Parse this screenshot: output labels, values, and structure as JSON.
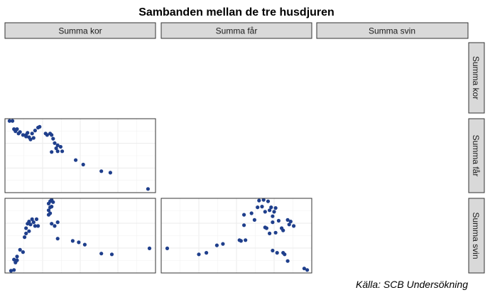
{
  "chart_data": {
    "type": "scatter",
    "title": "Sambanden mellan de tre husdjuren",
    "caption": "Källa: SCB Undersökning",
    "variables": [
      "Summa kor",
      "Summa får",
      "Summa svin"
    ],
    "grid": true,
    "series_color": "#1f3f8c",
    "panels": [
      {
        "x": "Summa kor",
        "y": "Summa får",
        "points": [
          [
            0.03,
            0.97
          ],
          [
            0.05,
            0.97
          ],
          [
            0.06,
            0.86
          ],
          [
            0.07,
            0.83
          ],
          [
            0.08,
            0.86
          ],
          [
            0.09,
            0.8
          ],
          [
            0.1,
            0.82
          ],
          [
            0.12,
            0.78
          ],
          [
            0.14,
            0.78
          ],
          [
            0.14,
            0.76
          ],
          [
            0.15,
            0.81
          ],
          [
            0.16,
            0.75
          ],
          [
            0.17,
            0.72
          ],
          [
            0.18,
            0.8
          ],
          [
            0.19,
            0.74
          ],
          [
            0.2,
            0.84
          ],
          [
            0.22,
            0.88
          ],
          [
            0.23,
            0.89
          ],
          [
            0.27,
            0.8
          ],
          [
            0.28,
            0.78
          ],
          [
            0.3,
            0.8
          ],
          [
            0.31,
            0.78
          ],
          [
            0.32,
            0.73
          ],
          [
            0.33,
            0.67
          ],
          [
            0.31,
            0.55
          ],
          [
            0.34,
            0.6
          ],
          [
            0.35,
            0.64
          ],
          [
            0.37,
            0.62
          ],
          [
            0.35,
            0.56
          ],
          [
            0.38,
            0.56
          ],
          [
            0.47,
            0.44
          ],
          [
            0.52,
            0.38
          ],
          [
            0.64,
            0.29
          ],
          [
            0.7,
            0.27
          ],
          [
            0.95,
            0.05
          ]
        ]
      },
      {
        "x": "Summa kor",
        "y": "Summa svin",
        "points": [
          [
            0.04,
            0.03
          ],
          [
            0.06,
            0.04
          ],
          [
            0.06,
            0.18
          ],
          [
            0.07,
            0.14
          ],
          [
            0.08,
            0.22
          ],
          [
            0.08,
            0.17
          ],
          [
            0.1,
            0.31
          ],
          [
            0.12,
            0.28
          ],
          [
            0.13,
            0.48
          ],
          [
            0.14,
            0.53
          ],
          [
            0.14,
            0.6
          ],
          [
            0.15,
            0.66
          ],
          [
            0.16,
            0.69
          ],
          [
            0.16,
            0.56
          ],
          [
            0.17,
            0.65
          ],
          [
            0.18,
            0.72
          ],
          [
            0.19,
            0.68
          ],
          [
            0.2,
            0.63
          ],
          [
            0.21,
            0.72
          ],
          [
            0.22,
            0.63
          ],
          [
            0.29,
            0.78
          ],
          [
            0.29,
            0.84
          ],
          [
            0.29,
            0.93
          ],
          [
            0.3,
            0.96
          ],
          [
            0.3,
            0.88
          ],
          [
            0.3,
            0.8
          ],
          [
            0.31,
            0.98
          ],
          [
            0.31,
            0.89
          ],
          [
            0.32,
            0.95
          ],
          [
            0.31,
            0.66
          ],
          [
            0.33,
            0.63
          ],
          [
            0.35,
            0.46
          ],
          [
            0.35,
            0.68
          ],
          [
            0.45,
            0.43
          ],
          [
            0.49,
            0.41
          ],
          [
            0.53,
            0.38
          ],
          [
            0.64,
            0.26
          ],
          [
            0.71,
            0.25
          ],
          [
            0.96,
            0.33
          ]
        ]
      },
      {
        "x": "Summa får",
        "y": "Summa svin",
        "points": [
          [
            0.04,
            0.33
          ],
          [
            0.25,
            0.25
          ],
          [
            0.3,
            0.27
          ],
          [
            0.37,
            0.37
          ],
          [
            0.41,
            0.39
          ],
          [
            0.52,
            0.44
          ],
          [
            0.53,
            0.43
          ],
          [
            0.55,
            0.78
          ],
          [
            0.55,
            0.64
          ],
          [
            0.56,
            0.44
          ],
          [
            0.6,
            0.8
          ],
          [
            0.62,
            0.71
          ],
          [
            0.64,
            0.88
          ],
          [
            0.65,
            0.97
          ],
          [
            0.67,
            0.89
          ],
          [
            0.68,
            0.98
          ],
          [
            0.69,
            0.82
          ],
          [
            0.69,
            0.61
          ],
          [
            0.7,
            0.6
          ],
          [
            0.71,
            0.96
          ],
          [
            0.72,
            0.53
          ],
          [
            0.72,
            0.84
          ],
          [
            0.73,
            0.88
          ],
          [
            0.74,
            0.76
          ],
          [
            0.74,
            0.68
          ],
          [
            0.75,
            0.82
          ],
          [
            0.76,
            0.87
          ],
          [
            0.76,
            0.54
          ],
          [
            0.74,
            0.3
          ],
          [
            0.77,
            0.27
          ],
          [
            0.78,
            0.7
          ],
          [
            0.8,
            0.6
          ],
          [
            0.81,
            0.57
          ],
          [
            0.81,
            0.27
          ],
          [
            0.82,
            0.25
          ],
          [
            0.84,
            0.16
          ],
          [
            0.84,
            0.71
          ],
          [
            0.85,
            0.65
          ],
          [
            0.86,
            0.69
          ],
          [
            0.88,
            0.63
          ],
          [
            0.95,
            0.06
          ],
          [
            0.97,
            0.04
          ]
        ]
      }
    ]
  }
}
